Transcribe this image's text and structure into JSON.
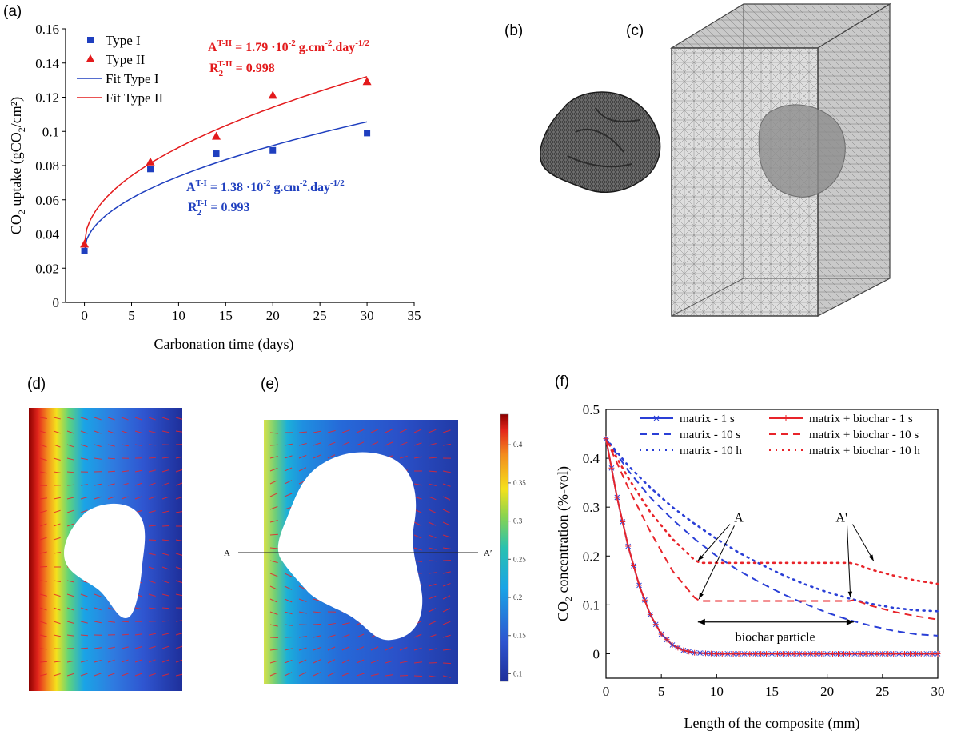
{
  "panels": {
    "a": "(a)",
    "b": "(b)",
    "c": "(c)",
    "d": "(d)",
    "e": "(e)",
    "f": "(f)"
  },
  "panel_a_text": {
    "eq_t2_A": "A",
    "eq_t2_A_sup": "T-II",
    "eq_t2_A_rest": " = 1.79 ·10",
    "eq_t2_A_exp": "-2",
    "eq_t2_A_unit": " g.cm",
    "eq_t2_A_unit_exp": "-2",
    "eq_t2_A_tail": ".day",
    "eq_t2_A_tail_exp": "-1/2",
    "eq_t2_R": "R",
    "eq_t2_R_sub": "2",
    "eq_t2_R_sup": "T-II",
    "eq_t2_R_val": " = 0.998",
    "eq_t1_A": "A",
    "eq_t1_A_sup": "T-I",
    "eq_t1_A_rest": " = 1.38 ·10",
    "eq_t1_A_exp": "-2",
    "eq_t1_A_unit": " g.cm",
    "eq_t1_A_unit_exp": "-2",
    "eq_t1_A_tail": ".day",
    "eq_t1_A_tail_exp": "-1/2",
    "eq_t1_R": "R",
    "eq_t1_R_sub": "2",
    "eq_t1_R_sup": "T-I",
    "eq_t1_R_val": " = 0.993"
  },
  "panel_e_text": {
    "line_start": "A",
    "line_end": "A′"
  },
  "panel_f_text": {
    "ann_A": "A",
    "ann_A2": "A'",
    "span_label": "biochar particle"
  },
  "colorbar": {
    "ticks": [
      "0.4",
      "0.35",
      "0.3",
      "0.25",
      "0.2",
      "0.15",
      "0.1"
    ],
    "tick_values": [
      0.4,
      0.35,
      0.3,
      0.25,
      0.2,
      0.15,
      0.1
    ],
    "range": [
      0.09,
      0.44
    ]
  },
  "colors": {
    "type1": "#1f3fbf",
    "type2": "#e31a1c",
    "matrix": "#2a3fd6",
    "biochar": "#e8242a",
    "arrow": "#e8242a"
  },
  "chart_data": [
    {
      "type": "scatter",
      "xlabel": "Carbonation time (days)",
      "ylabel_main": "CO",
      "ylabel_sub": "2",
      "ylabel_rest": " uptake (gCO",
      "ylabel_sub2": "2",
      "ylabel_tail": "/cm²)",
      "xlim": [
        -2,
        35
      ],
      "ylim": [
        0,
        0.16
      ],
      "xticks": [
        0,
        5,
        10,
        15,
        20,
        25,
        30,
        35
      ],
      "yticks": [
        "0",
        "0.02",
        "0.04",
        "0.06",
        "0.08",
        "0.1",
        "0.12",
        "0.14",
        "0.16"
      ],
      "ytick_values": [
        0,
        0.02,
        0.04,
        0.06,
        0.08,
        0.1,
        0.12,
        0.14,
        0.16
      ],
      "legend_position": "top-left",
      "series": [
        {
          "name": "Type I",
          "marker": "square",
          "x": [
            0,
            7,
            14,
            20,
            30
          ],
          "y": [
            0.03,
            0.078,
            0.087,
            0.089,
            0.099
          ]
        },
        {
          "name": "Type II",
          "marker": "triangle",
          "x": [
            0,
            7,
            14,
            20,
            30
          ],
          "y": [
            0.034,
            0.082,
            0.097,
            0.121,
            0.129
          ]
        },
        {
          "name": "Fit Type I",
          "marker": "line",
          "fit": {
            "c0": 0.03,
            "A": 0.0138
          }
        },
        {
          "name": "Fit Type II",
          "marker": "line",
          "fit": {
            "c0": 0.034,
            "A": 0.0179
          }
        }
      ]
    },
    {
      "type": "line",
      "xlabel": "Length of the composite (mm)",
      "ylabel_main": "CO",
      "ylabel_sub": "2",
      "ylabel_rest": " concentration (%-vol)",
      "xlim": [
        0,
        30
      ],
      "ylim": [
        -0.05,
        0.5
      ],
      "xticks": [
        0,
        5,
        10,
        15,
        20,
        25,
        30
      ],
      "yticks": [
        "0",
        "0.1",
        "0.2",
        "0.3",
        "0.4",
        "0.5"
      ],
      "ytick_values": [
        0,
        0.1,
        0.2,
        0.3,
        0.4,
        0.5
      ],
      "legend_position": "top",
      "series": [
        {
          "name": "matrix - 1 s",
          "style": "solid-x",
          "x": [
            0,
            1,
            2,
            3,
            4,
            5,
            6,
            7,
            8,
            10,
            15,
            20,
            25,
            30
          ],
          "y": [
            0.44,
            0.32,
            0.22,
            0.14,
            0.08,
            0.04,
            0.018,
            0.007,
            0.002,
            0,
            0,
            0,
            0,
            0
          ]
        },
        {
          "name": "matrix - 10 s",
          "style": "dashed",
          "x": [
            0,
            2,
            4,
            6,
            8,
            10,
            12,
            14,
            16,
            18,
            20,
            22,
            24,
            26,
            28,
            30
          ],
          "y": [
            0.44,
            0.375,
            0.32,
            0.275,
            0.235,
            0.2,
            0.17,
            0.145,
            0.122,
            0.102,
            0.084,
            0.069,
            0.057,
            0.047,
            0.04,
            0.037
          ]
        },
        {
          "name": "matrix - 10 h",
          "style": "dotted",
          "x": [
            0,
            2,
            4,
            6,
            8,
            10,
            12,
            14,
            16,
            18,
            20,
            22,
            24,
            26,
            28,
            30
          ],
          "y": [
            0.44,
            0.385,
            0.34,
            0.3,
            0.266,
            0.235,
            0.207,
            0.183,
            0.161,
            0.142,
            0.126,
            0.113,
            0.102,
            0.094,
            0.089,
            0.087
          ]
        },
        {
          "name": "matrix + biochar - 1 s",
          "style": "solid-plus",
          "x": [
            0,
            1,
            2,
            3,
            4,
            5,
            6,
            7,
            8,
            10,
            15,
            20,
            25,
            30
          ],
          "y": [
            0.44,
            0.32,
            0.22,
            0.14,
            0.08,
            0.04,
            0.018,
            0.007,
            0.002,
            0,
            0,
            0,
            0,
            0
          ]
        },
        {
          "name": "matrix + biochar - 10 s",
          "style": "dashed",
          "x": [
            0,
            2,
            4,
            6,
            8,
            8.5,
            15,
            22,
            22.5,
            24,
            26,
            28,
            30
          ],
          "y": [
            0.44,
            0.34,
            0.25,
            0.17,
            0.115,
            0.108,
            0.108,
            0.108,
            0.11,
            0.098,
            0.086,
            0.077,
            0.07
          ]
        },
        {
          "name": "matrix + biochar - 10 h",
          "style": "dotted",
          "x": [
            0,
            2,
            4,
            6,
            8,
            8.5,
            15,
            22,
            22.5,
            24,
            26,
            28,
            30
          ],
          "y": [
            0.44,
            0.36,
            0.29,
            0.235,
            0.192,
            0.186,
            0.186,
            0.186,
            0.184,
            0.172,
            0.16,
            0.15,
            0.143
          ]
        }
      ]
    }
  ]
}
